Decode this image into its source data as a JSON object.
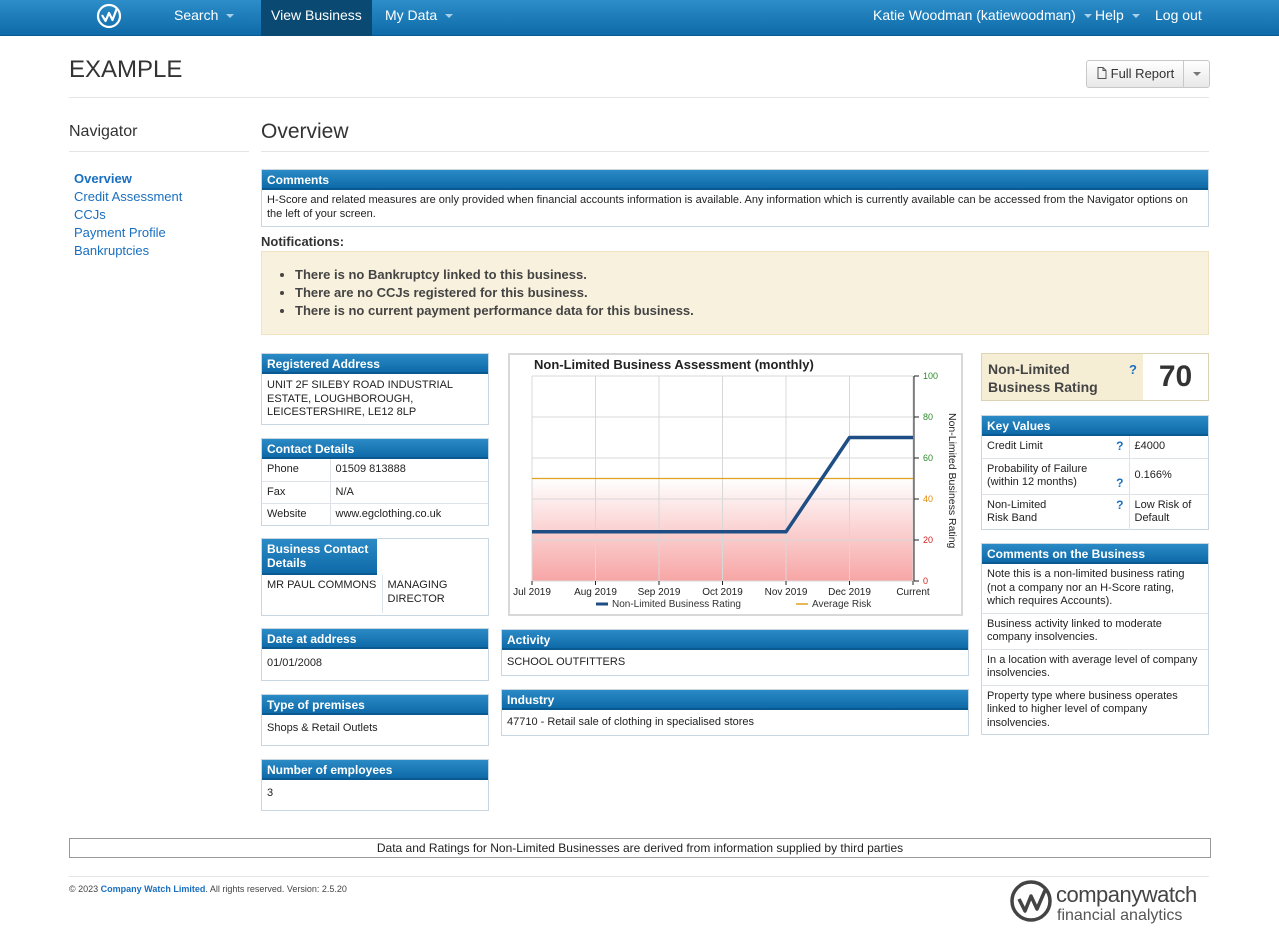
{
  "nav": {
    "search": "Search",
    "view_business": "View Business",
    "my_data": "My Data",
    "user": "Katie Woodman (katiewoodman)",
    "help": "Help",
    "logout": "Log out"
  },
  "header": {
    "title": "EXAMPLE",
    "full_report": "Full Report"
  },
  "navigator": {
    "title": "Navigator",
    "items": [
      "Overview",
      "Credit Assessment",
      "CCJs",
      "Payment Profile",
      "Bankruptcies"
    ]
  },
  "main": {
    "title": "Overview"
  },
  "comments": {
    "title": "Comments",
    "text": "H-Score and related measures are only provided when financial accounts information is available. Any information which is currently available can be accessed from the Navigator options on the left of your screen."
  },
  "notifications": {
    "label": "Notifications:",
    "items": [
      "There is no Bankruptcy linked to this business.",
      "There are no CCJs registered for this business.",
      "There is no current payment performance data for this business."
    ]
  },
  "registered_address": {
    "title": "Registered Address",
    "text": "UNIT 2F SILEBY ROAD INDUSTRIAL ESTATE, LOUGHBOROUGH, LEICESTERSHIRE, LE12 8LP"
  },
  "contact": {
    "title": "Contact Details",
    "rows": [
      {
        "label": "Phone",
        "value": "01509 813888"
      },
      {
        "label": "Fax",
        "value": "N/A"
      },
      {
        "label": "Website",
        "value": "www.egclothing.co.uk"
      }
    ]
  },
  "business_contact": {
    "title": "Business Contact Details",
    "name": "MR PAUL COMMONS",
    "role": "MANAGING DIRECTOR"
  },
  "date_at_address": {
    "title": "Date at address",
    "value": "01/01/2008"
  },
  "premises": {
    "title": "Type of premises",
    "value": "Shops & Retail Outlets"
  },
  "employees": {
    "title": "Number of employees",
    "value": "3"
  },
  "activity": {
    "title": "Activity",
    "value": "SCHOOL OUTFITTERS"
  },
  "industry": {
    "title": "Industry",
    "value": "47710 - Retail sale of clothing in specialised stores"
  },
  "rating": {
    "label": "Non-Limited Business Rating",
    "value": "70",
    "help": "?"
  },
  "key_values": {
    "title": "Key Values",
    "rows": [
      {
        "label": "Credit Limit",
        "value": "£4000"
      },
      {
        "label": "Probability of Failure (within 12 months)",
        "value": "0.166%"
      },
      {
        "label": "Non-Limited Risk Band",
        "value": "Low Risk of Default"
      }
    ]
  },
  "business_comments": {
    "title": "Comments on the Business",
    "items": [
      "Note this is a non-limited business rating (not a company nor an H-Score rating, which requires Accounts).",
      "Business activity linked to moderate company insolvencies.",
      "In a location with average level of company insolvencies.",
      "Property type where business operates linked to higher level of company insolvencies."
    ]
  },
  "chart_data": {
    "type": "line",
    "title": "Non-Limited Business Assessment (monthly)",
    "categories": [
      "Jul 2019",
      "Aug 2019",
      "Sep 2019",
      "Oct 2019",
      "Nov 2019",
      "Dec 2019",
      "Current"
    ],
    "ylabel": "Non-Limited Business Rating",
    "ylim": [
      0,
      100
    ],
    "yticks": [
      0,
      20,
      40,
      60,
      80,
      100
    ],
    "series": [
      {
        "name": "Non-Limited Business Rating",
        "values": [
          24,
          24,
          24,
          24,
          24,
          70,
          70
        ],
        "color": "#1f4e84"
      },
      {
        "name": "Average Risk",
        "values": [
          50,
          50,
          50,
          50,
          50,
          50,
          50
        ],
        "color": "#e0a020"
      }
    ],
    "grid": true,
    "legend": "bottom"
  },
  "disclaimer": "Data and Ratings for Non-Limited Businesses are derived from information supplied by third parties",
  "footer": {
    "copyright_prefix": "© 2023",
    "company": "Company Watch Limited",
    "copyright_suffix": ". All rights reserved. Version: 2.5.20",
    "brand": "companywatch",
    "brand_sub": "financial analytics"
  }
}
